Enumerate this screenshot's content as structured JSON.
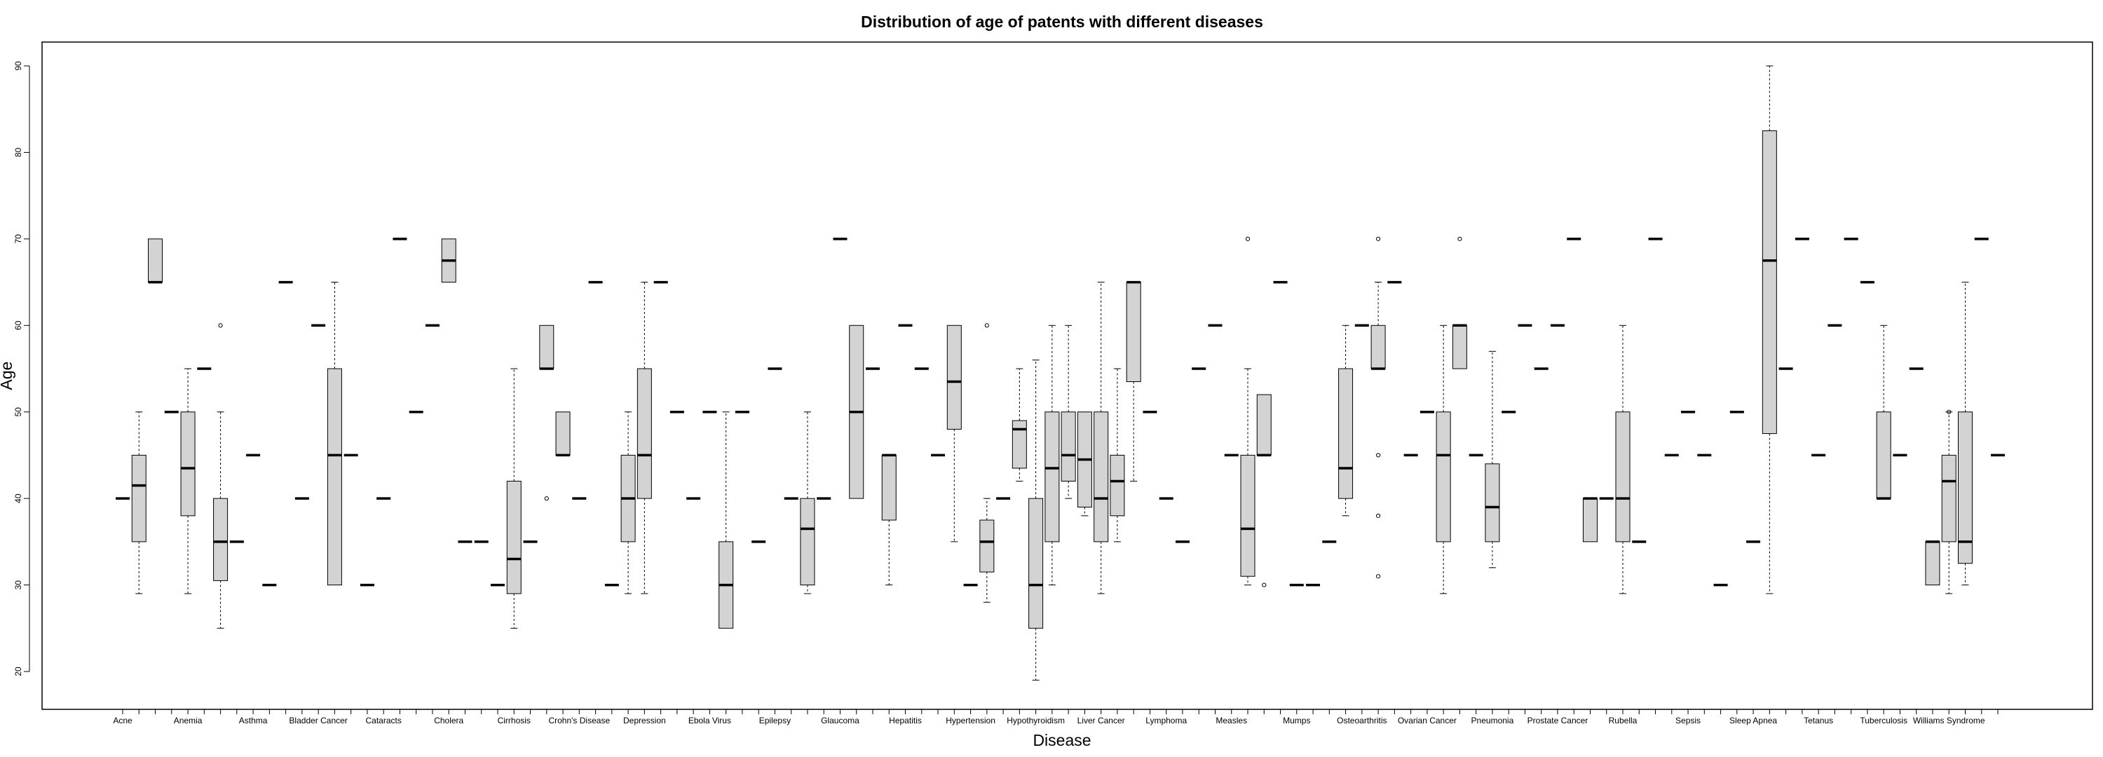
{
  "chart_data": {
    "type": "boxplot",
    "title": "Distribution of age of patents with different diseases",
    "xlabel": "Disease",
    "ylabel": "Age",
    "ylim": [
      18,
      93
    ],
    "yticks": [
      20,
      30,
      40,
      50,
      60,
      70,
      80,
      90
    ],
    "printed_category_labels": [
      "Acne",
      "Anemia",
      "Asthma",
      "Bladder Cancer",
      "Cataracts",
      "Cholera",
      "Cirrhosis",
      "Crohn's Disease",
      "Depression",
      "Ebola Virus",
      "Epilepsy",
      "Glaucoma",
      "Hepatitis",
      "Hypertension",
      "Hypothyroidism",
      "Liver Cancer",
      "Lymphoma",
      "Measles",
      "Mumps",
      "Osteoarthritis",
      "Ovarian Cancer",
      "Pneumonia",
      "Prostate Cancer",
      "Rubella",
      "Sepsis",
      "Sleep Apnea",
      "Tetanus",
      "Tuberculosis",
      "Williams Syndrome"
    ],
    "boxes": [
      {
        "med": 40
      },
      {
        "min": 29,
        "q1": 35,
        "med": 41.5,
        "q3": 45,
        "max": 50
      },
      {
        "q1": 65,
        "med": 65,
        "q3": 70
      },
      {
        "med": 50
      },
      {
        "min": 29,
        "q1": 38,
        "med": 43.5,
        "q3": 50,
        "max": 55
      },
      {
        "med": 55
      },
      {
        "min": 25,
        "q1": 30.5,
        "med": 35,
        "q3": 40,
        "max": 50,
        "outliers": [
          60
        ]
      },
      {
        "med": 35
      },
      {
        "med": 45
      },
      {
        "med": 30
      },
      {
        "med": 65
      },
      {
        "med": 40
      },
      {
        "med": 60
      },
      {
        "min": 30,
        "q1": 30,
        "med": 45,
        "q3": 55,
        "max": 65
      },
      {
        "med": 45
      },
      {
        "med": 30
      },
      {
        "med": 40
      },
      {
        "med": 70
      },
      {
        "med": 50
      },
      {
        "med": 60
      },
      {
        "q1": 65,
        "med": 67.5,
        "q3": 70
      },
      {
        "med": 35
      },
      {
        "med": 35
      },
      {
        "med": 30
      },
      {
        "min": 25,
        "q1": 29,
        "med": 33,
        "q3": 42,
        "max": 55
      },
      {
        "med": 35
      },
      {
        "q1": 55,
        "med": 55,
        "q3": 60,
        "outliers": [
          40
        ]
      },
      {
        "q1": 45,
        "med": 45,
        "q3": 50
      },
      {
        "med": 40
      },
      {
        "med": 65
      },
      {
        "med": 30
      },
      {
        "min": 29,
        "q1": 35,
        "med": 40,
        "q3": 45,
        "max": 50
      },
      {
        "min": 29,
        "q1": 40,
        "med": 45,
        "q3": 55,
        "max": 65
      },
      {
        "med": 65
      },
      {
        "med": 50
      },
      {
        "med": 40
      },
      {
        "med": 50
      },
      {
        "min": 25,
        "q1": 25,
        "med": 30,
        "q3": 35,
        "max": 50
      },
      {
        "med": 50
      },
      {
        "med": 35
      },
      {
        "med": 55
      },
      {
        "med": 40
      },
      {
        "min": 29,
        "q1": 30,
        "med": 36.5,
        "q3": 40,
        "max": 50
      },
      {
        "med": 40
      },
      {
        "med": 70
      },
      {
        "q1": 40,
        "med": 50,
        "q3": 60
      },
      {
        "med": 55
      },
      {
        "min": 30,
        "q1": 37.5,
        "med": 45,
        "q3": 45,
        "max": 45
      },
      {
        "med": 60
      },
      {
        "med": 55
      },
      {
        "med": 45
      },
      {
        "min": 35,
        "q1": 48,
        "med": 53.5,
        "q3": 60,
        "max": 60
      },
      {
        "med": 30
      },
      {
        "min": 28,
        "q1": 31.5,
        "med": 35,
        "q3": 37.5,
        "max": 40,
        "outliers": [
          60
        ]
      },
      {
        "med": 40
      },
      {
        "min": 42,
        "q1": 43.5,
        "med": 48,
        "q3": 49,
        "max": 55
      },
      {
        "min": 19,
        "q1": 25,
        "med": 30,
        "q3": 40,
        "max": 56
      },
      {
        "min": 30,
        "q1": 35,
        "med": 43.5,
        "q3": 50,
        "max": 60
      },
      {
        "min": 40,
        "q1": 42,
        "med": 45,
        "q3": 50,
        "max": 60
      },
      {
        "min": 38,
        "q1": 39,
        "med": 44.5,
        "q3": 50,
        "max": 50
      },
      {
        "min": 29,
        "q1": 35,
        "med": 40,
        "q3": 50,
        "max": 65
      },
      {
        "min": 35,
        "q1": 38,
        "med": 42,
        "q3": 45,
        "max": 55
      },
      {
        "min": 42,
        "q1": 53.5,
        "med": 65,
        "q3": 65,
        "max": 65
      },
      {
        "med": 50
      },
      {
        "med": 40
      },
      {
        "med": 35
      },
      {
        "med": 55
      },
      {
        "med": 60
      },
      {
        "med": 45
      },
      {
        "min": 30,
        "q1": 31,
        "med": 36.5,
        "q3": 45,
        "max": 55,
        "outliers": [
          70
        ]
      },
      {
        "q1": 45,
        "med": 45,
        "q3": 52,
        "outliers": [
          30
        ]
      },
      {
        "med": 65
      },
      {
        "med": 30
      },
      {
        "med": 30
      },
      {
        "med": 35
      },
      {
        "min": 38,
        "q1": 40,
        "med": 43.5,
        "q3": 55,
        "max": 60
      },
      {
        "med": 60
      },
      {
        "min": 55,
        "q1": 55,
        "med": 55,
        "q3": 60,
        "max": 65,
        "outliers": [
          70,
          45,
          38,
          31
        ]
      },
      {
        "med": 65
      },
      {
        "med": 45
      },
      {
        "med": 50
      },
      {
        "min": 29,
        "q1": 35,
        "med": 45,
        "q3": 50,
        "max": 60
      },
      {
        "q1": 55,
        "med": 60,
        "q3": 60,
        "outliers": [
          70
        ]
      },
      {
        "med": 45
      },
      {
        "min": 32,
        "q1": 35,
        "med": 39,
        "q3": 44,
        "max": 57
      },
      {
        "med": 50
      },
      {
        "med": 60
      },
      {
        "med": 55
      },
      {
        "med": 60
      },
      {
        "med": 70
      },
      {
        "q1": 35,
        "med": 40,
        "q3": 40
      },
      {
        "med": 40
      },
      {
        "min": 29,
        "q1": 35,
        "med": 40,
        "q3": 50,
        "max": 60
      },
      {
        "med": 35
      },
      {
        "med": 70
      },
      {
        "med": 45
      },
      {
        "med": 50
      },
      {
        "med": 45
      },
      {
        "med": 30
      },
      {
        "med": 50
      },
      {
        "med": 35
      },
      {
        "min": 29,
        "q1": 47.5,
        "med": 67.5,
        "q3": 82.5,
        "max": 90
      },
      {
        "med": 55
      },
      {
        "med": 70
      },
      {
        "med": 45
      },
      {
        "med": 60
      },
      {
        "med": 70
      },
      {
        "med": 65
      },
      {
        "q1": 40,
        "med": 40,
        "q3": 50,
        "max": 60
      },
      {
        "med": 45
      },
      {
        "med": 55
      },
      {
        "q1": 30,
        "med": 35,
        "q3": 35
      },
      {
        "min": 29,
        "q1": 35,
        "med": 42,
        "q3": 45,
        "max": 50,
        "outliers": [
          50
        ]
      },
      {
        "min": 30,
        "q1": 32.5,
        "med": 35,
        "q3": 50,
        "max": 65
      },
      {
        "med": 70
      },
      {
        "med": 45
      }
    ]
  }
}
